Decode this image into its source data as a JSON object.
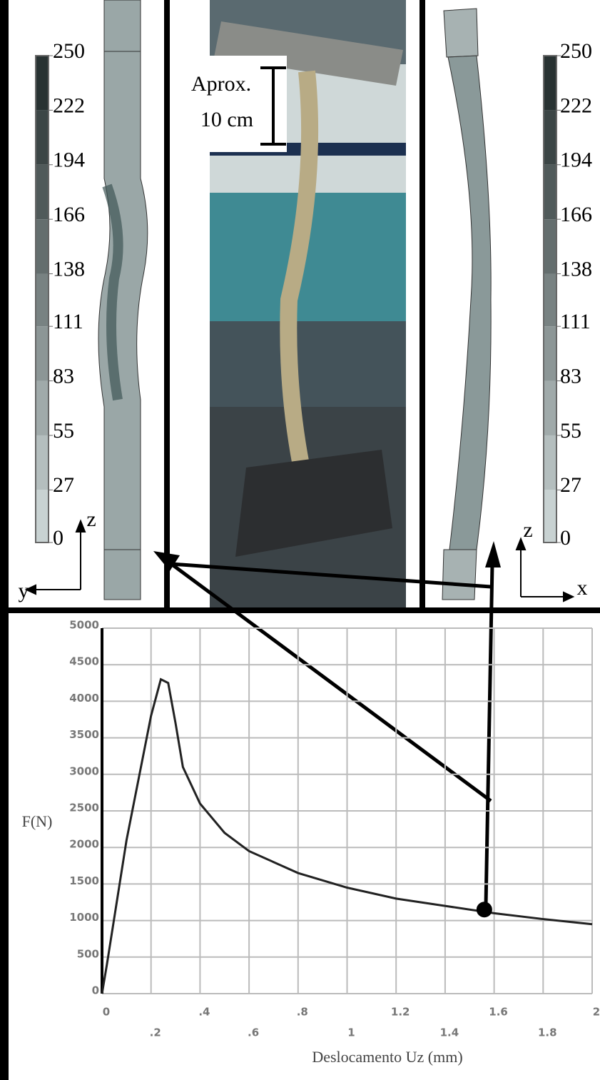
{
  "panels": {
    "left": {
      "colorbar_ticks": [
        250,
        222,
        194,
        166,
        138,
        111,
        83,
        55,
        27,
        0
      ],
      "axis_vertical": "z",
      "axis_horizontal": "y"
    },
    "photo": {
      "annotation_line1": "Aprox.",
      "annotation_line2": "10 cm"
    },
    "right": {
      "colorbar_ticks": [
        250,
        222,
        194,
        166,
        138,
        111,
        83,
        55,
        27,
        0
      ],
      "axis_vertical": "z",
      "axis_horizontal": "x"
    }
  },
  "chart_data": {
    "type": "line",
    "xlabel": "Deslocamento Uz (mm)",
    "ylabel": "F(N)",
    "x": [
      0,
      0.02,
      0.1,
      0.2,
      0.24,
      0.27,
      0.3,
      0.33,
      0.4,
      0.5,
      0.6,
      0.8,
      1,
      1.2,
      1.4,
      1.6,
      1.8,
      2
    ],
    "series": [
      {
        "name": "F(N)",
        "color": "#222222",
        "values": [
          0,
          400,
          2100,
          3800,
          4300,
          4250,
          3700,
          3100,
          2600,
          2200,
          1950,
          1650,
          1450,
          1300,
          1200,
          1100,
          1020,
          950
        ]
      }
    ],
    "marker": {
      "x": 1.56,
      "y": 1150
    },
    "xlim": [
      0,
      2
    ],
    "ylim": [
      0,
      5000
    ],
    "xticks": [
      0,
      {
        "value": 0.2,
        "label": ".2"
      },
      {
        "value": 0.4,
        "label": ".4"
      },
      {
        "value": 0.6,
        "label": ".6"
      },
      {
        "value": 0.8,
        "label": ".8"
      },
      1,
      1.2,
      1.4,
      1.6,
      1.8,
      2
    ],
    "yticks": [
      0,
      500,
      1000,
      1500,
      2000,
      2500,
      3000,
      3500,
      4000,
      4500,
      5000
    ],
    "grid": true
  }
}
